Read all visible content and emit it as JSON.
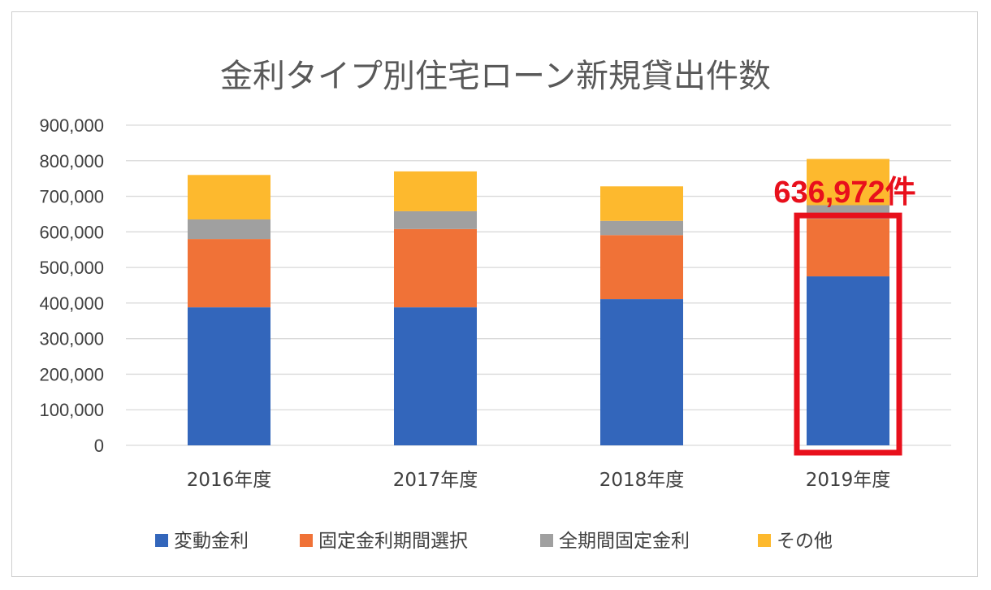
{
  "chart_data": {
    "type": "bar",
    "stacked": true,
    "title": "金利タイプ別住宅ローン新規貸出件数",
    "categories": [
      "2016年度",
      "2017年度",
      "2018年度",
      "2019年度"
    ],
    "series": [
      {
        "name": "変動金利",
        "color": "#3366BB",
        "values": [
          388000,
          388000,
          411000,
          475000
        ]
      },
      {
        "name": "固定金利期間選択",
        "color": "#F07237",
        "values": [
          192000,
          220000,
          180000,
          162000
        ]
      },
      {
        "name": "全期間固定金利",
        "color": "#A0A0A0",
        "values": [
          55000,
          50000,
          40000,
          38000
        ]
      },
      {
        "name": "その他",
        "color": "#FDB92E",
        "values": [
          125000,
          112000,
          97000,
          130000
        ]
      }
    ],
    "ylim": [
      0,
      900000
    ],
    "yticks": [
      "0",
      "100,000",
      "200,000",
      "300,000",
      "400,000",
      "500,000",
      "600,000",
      "700,000",
      "800,000",
      "900,000"
    ],
    "grid": true,
    "legend": "bottom",
    "annotation": {
      "text": "636,972件",
      "category": "2019年度",
      "highlight_value_range": [
        0,
        637000
      ],
      "color": "#E8101C"
    }
  }
}
